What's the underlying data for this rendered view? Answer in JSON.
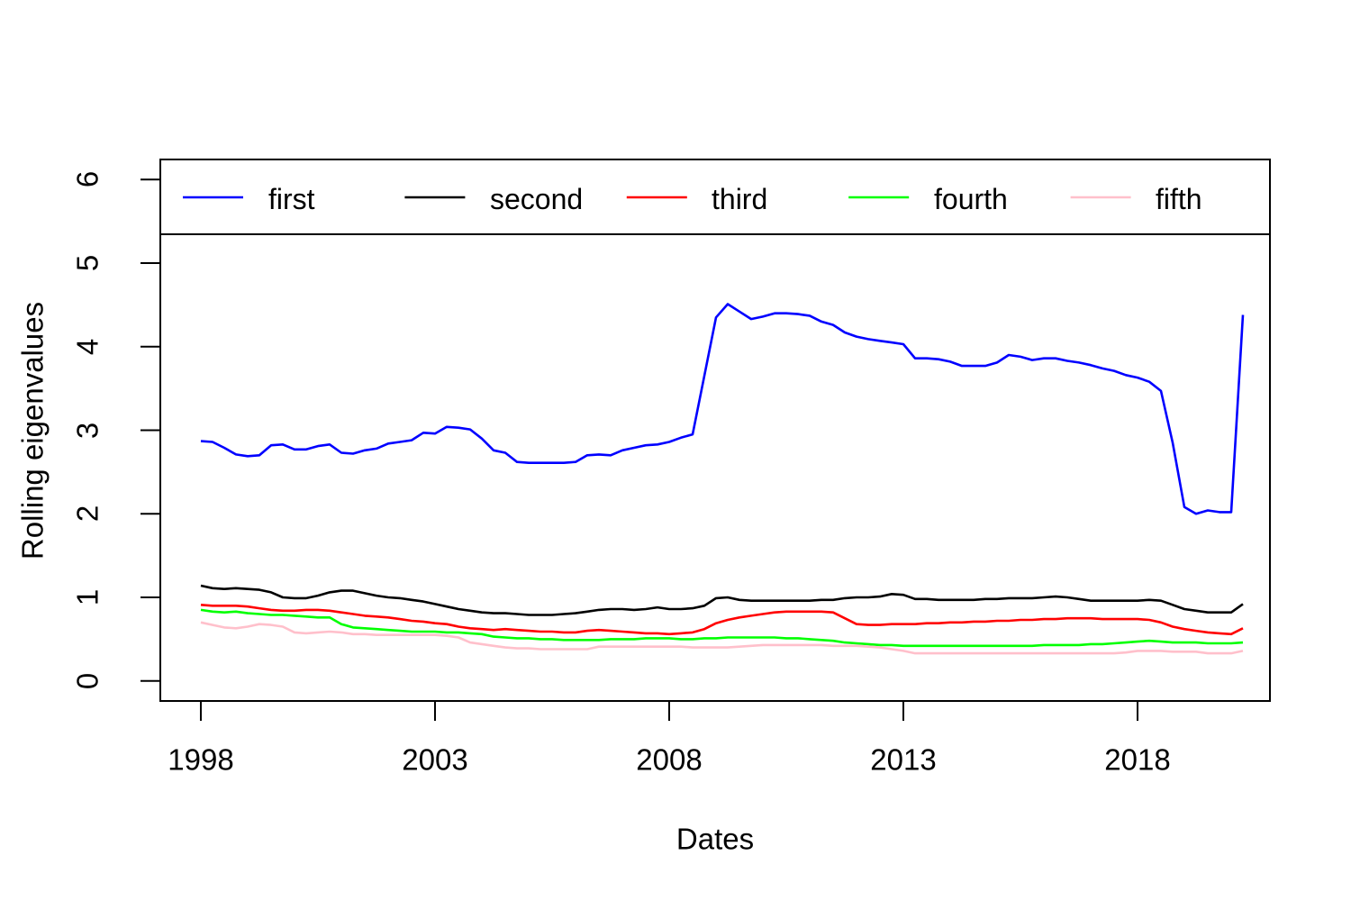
{
  "figure": {
    "background": "#FFFFFF",
    "frame_color": "#000000"
  },
  "legend": {
    "position": "top",
    "items": [
      {
        "label": "first",
        "color": "#0000FF"
      },
      {
        "label": "second",
        "color": "#000000"
      },
      {
        "label": "third",
        "color": "#FF0000"
      },
      {
        "label": "fourth",
        "color": "#00FF00"
      },
      {
        "label": "fifth",
        "color": "#FFC0CB"
      }
    ]
  },
  "chart_data": {
    "type": "line",
    "title": "",
    "xlabel": "Dates",
    "ylabel": "Rolling eigenvalues",
    "grid": false,
    "legend_position": "top",
    "xlim": [
      1997.135,
      2020.827
    ],
    "ylim": [
      -0.24,
      6.24
    ],
    "x_ticks": [
      1998,
      2003,
      2008,
      2013,
      2018
    ],
    "x_tick_labels": [
      "1998",
      "2003",
      "2008",
      "2013",
      "2018"
    ],
    "y_ticks": [
      0,
      1,
      2,
      3,
      4,
      5,
      6
    ],
    "y_tick_labels": [
      "0",
      "1",
      "2",
      "3",
      "4",
      "5",
      "6"
    ],
    "x": [
      1998,
      1998.25,
      1998.5,
      1998.75,
      1999,
      1999.25,
      1999.5,
      1999.75,
      2000,
      2000.25,
      2000.5,
      2000.75,
      2001,
      2001.25,
      2001.5,
      2001.75,
      2002,
      2002.25,
      2002.5,
      2002.75,
      2003,
      2003.25,
      2003.5,
      2003.75,
      2004,
      2004.25,
      2004.5,
      2004.75,
      2005,
      2005.25,
      2005.5,
      2005.75,
      2006,
      2006.25,
      2006.5,
      2006.75,
      2007,
      2007.25,
      2007.5,
      2007.75,
      2008,
      2008.25,
      2008.5,
      2008.75,
      2009,
      2009.25,
      2009.5,
      2009.75,
      2010,
      2010.25,
      2010.5,
      2010.75,
      2011,
      2011.25,
      2011.5,
      2011.75,
      2012,
      2012.25,
      2012.5,
      2012.75,
      2013,
      2013.25,
      2013.5,
      2013.75,
      2014,
      2014.25,
      2014.5,
      2014.75,
      2015,
      2015.25,
      2015.5,
      2015.75,
      2016,
      2016.25,
      2016.5,
      2016.75,
      2017,
      2017.25,
      2017.5,
      2017.75,
      2018,
      2018.25,
      2018.5,
      2018.75,
      2019,
      2019.25,
      2019.5,
      2019.75,
      2020,
      2020.25
    ],
    "series": [
      {
        "name": "first",
        "color": "#0000FF",
        "values": [
          2.87,
          2.86,
          2.79,
          2.71,
          2.69,
          2.7,
          2.82,
          2.83,
          2.77,
          2.77,
          2.81,
          2.83,
          2.73,
          2.72,
          2.76,
          2.78,
          2.84,
          2.86,
          2.88,
          2.97,
          2.96,
          3.04,
          3.03,
          3.01,
          2.9,
          2.76,
          2.73,
          2.62,
          2.61,
          2.61,
          2.61,
          2.61,
          2.62,
          2.7,
          2.71,
          2.7,
          2.76,
          2.79,
          2.82,
          2.83,
          2.86,
          2.91,
          2.95,
          3.65,
          4.35,
          4.51,
          4.42,
          4.33,
          4.36,
          4.4,
          4.4,
          4.39,
          4.37,
          4.3,
          4.26,
          4.17,
          4.12,
          4.09,
          4.07,
          4.05,
          4.03,
          3.86,
          3.86,
          3.85,
          3.82,
          3.77,
          3.77,
          3.77,
          3.81,
          3.9,
          3.88,
          3.84,
          3.86,
          3.86,
          3.83,
          3.81,
          3.78,
          3.74,
          3.71,
          3.66,
          3.63,
          3.58,
          3.47,
          2.85,
          2.08,
          2.0,
          2.04,
          2.02,
          2.02,
          4.38
        ]
      },
      {
        "name": "second",
        "color": "#000000",
        "values": [
          1.14,
          1.11,
          1.1,
          1.11,
          1.1,
          1.09,
          1.06,
          1.0,
          0.99,
          0.99,
          1.02,
          1.06,
          1.08,
          1.08,
          1.05,
          1.02,
          1.0,
          0.99,
          0.97,
          0.95,
          0.92,
          0.89,
          0.86,
          0.84,
          0.82,
          0.81,
          0.81,
          0.8,
          0.79,
          0.79,
          0.79,
          0.8,
          0.81,
          0.83,
          0.85,
          0.86,
          0.86,
          0.85,
          0.86,
          0.88,
          0.86,
          0.86,
          0.87,
          0.9,
          0.99,
          1.0,
          0.97,
          0.96,
          0.96,
          0.96,
          0.96,
          0.96,
          0.96,
          0.97,
          0.97,
          0.99,
          1.0,
          1.0,
          1.01,
          1.04,
          1.03,
          0.98,
          0.98,
          0.97,
          0.97,
          0.97,
          0.97,
          0.98,
          0.98,
          0.99,
          0.99,
          0.99,
          1.0,
          1.01,
          1.0,
          0.98,
          0.96,
          0.96,
          0.96,
          0.96,
          0.96,
          0.97,
          0.96,
          0.91,
          0.86,
          0.84,
          0.82,
          0.82,
          0.82,
          0.92
        ]
      },
      {
        "name": "third",
        "color": "#FF0000",
        "values": [
          0.91,
          0.9,
          0.9,
          0.9,
          0.89,
          0.87,
          0.85,
          0.84,
          0.84,
          0.85,
          0.85,
          0.84,
          0.82,
          0.8,
          0.78,
          0.77,
          0.76,
          0.74,
          0.72,
          0.71,
          0.69,
          0.68,
          0.65,
          0.63,
          0.62,
          0.61,
          0.62,
          0.61,
          0.6,
          0.59,
          0.59,
          0.58,
          0.58,
          0.6,
          0.61,
          0.6,
          0.59,
          0.58,
          0.57,
          0.57,
          0.56,
          0.57,
          0.58,
          0.62,
          0.69,
          0.73,
          0.76,
          0.78,
          0.8,
          0.82,
          0.83,
          0.83,
          0.83,
          0.83,
          0.82,
          0.75,
          0.68,
          0.67,
          0.67,
          0.68,
          0.68,
          0.68,
          0.69,
          0.69,
          0.7,
          0.7,
          0.71,
          0.71,
          0.72,
          0.72,
          0.73,
          0.73,
          0.74,
          0.74,
          0.75,
          0.75,
          0.75,
          0.74,
          0.74,
          0.74,
          0.74,
          0.73,
          0.7,
          0.65,
          0.62,
          0.6,
          0.58,
          0.57,
          0.56,
          0.63
        ]
      },
      {
        "name": "fourth",
        "color": "#00FF00",
        "values": [
          0.85,
          0.83,
          0.82,
          0.83,
          0.81,
          0.8,
          0.79,
          0.79,
          0.78,
          0.77,
          0.76,
          0.76,
          0.68,
          0.64,
          0.63,
          0.62,
          0.61,
          0.6,
          0.59,
          0.59,
          0.59,
          0.58,
          0.58,
          0.57,
          0.56,
          0.53,
          0.52,
          0.51,
          0.51,
          0.5,
          0.5,
          0.49,
          0.49,
          0.49,
          0.49,
          0.5,
          0.5,
          0.5,
          0.51,
          0.51,
          0.51,
          0.5,
          0.5,
          0.51,
          0.51,
          0.52,
          0.52,
          0.52,
          0.52,
          0.52,
          0.51,
          0.51,
          0.5,
          0.49,
          0.48,
          0.46,
          0.45,
          0.44,
          0.43,
          0.43,
          0.42,
          0.42,
          0.42,
          0.42,
          0.42,
          0.42,
          0.42,
          0.42,
          0.42,
          0.42,
          0.42,
          0.42,
          0.43,
          0.43,
          0.43,
          0.43,
          0.44,
          0.44,
          0.45,
          0.46,
          0.47,
          0.48,
          0.47,
          0.46,
          0.46,
          0.46,
          0.45,
          0.45,
          0.45,
          0.46
        ]
      },
      {
        "name": "fifth",
        "color": "#FFC0CB",
        "values": [
          0.7,
          0.67,
          0.64,
          0.63,
          0.65,
          0.68,
          0.67,
          0.65,
          0.58,
          0.57,
          0.58,
          0.59,
          0.58,
          0.56,
          0.56,
          0.55,
          0.55,
          0.55,
          0.55,
          0.55,
          0.55,
          0.54,
          0.52,
          0.46,
          0.44,
          0.42,
          0.4,
          0.39,
          0.39,
          0.38,
          0.38,
          0.38,
          0.38,
          0.38,
          0.41,
          0.41,
          0.41,
          0.41,
          0.41,
          0.41,
          0.41,
          0.41,
          0.4,
          0.4,
          0.4,
          0.4,
          0.41,
          0.42,
          0.43,
          0.43,
          0.43,
          0.43,
          0.43,
          0.43,
          0.42,
          0.42,
          0.42,
          0.41,
          0.4,
          0.38,
          0.36,
          0.33,
          0.33,
          0.33,
          0.33,
          0.33,
          0.33,
          0.33,
          0.33,
          0.33,
          0.33,
          0.33,
          0.33,
          0.33,
          0.33,
          0.33,
          0.33,
          0.33,
          0.33,
          0.34,
          0.36,
          0.36,
          0.36,
          0.35,
          0.35,
          0.35,
          0.33,
          0.33,
          0.33,
          0.36
        ]
      }
    ]
  }
}
